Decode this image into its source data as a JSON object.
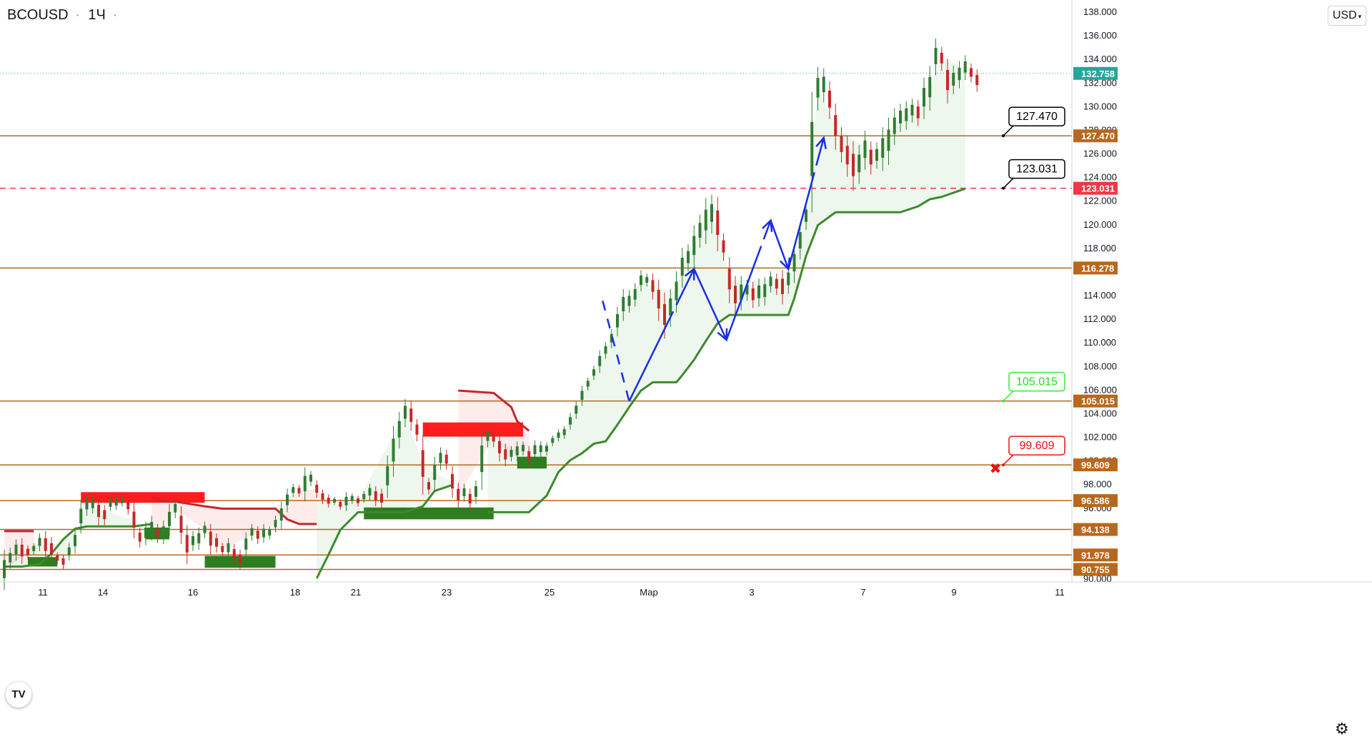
{
  "header": {
    "symbol": "BCOUSD",
    "timeframe": "1Ч",
    "menu_dot": "·"
  },
  "currency_button": "USD",
  "logo_text": "TV",
  "settings_icon": "gear-icon",
  "colors": {
    "level_line": "#b8681e",
    "level_label_bg": "#b8681e",
    "price_line": "#26a69a",
    "resistance_dashed": "#f23645",
    "stop_green": "#3c8a2e",
    "stop_red": "#c62828",
    "arrow": "#1a2ee0",
    "up_candle": "#2f7d32",
    "down_candle": "#c62828"
  },
  "chart_data": {
    "type": "candlestick",
    "price_axis": {
      "ylim": [
        90.0,
        138.0
      ],
      "ticks": [
        "136.000",
        "134.000",
        "132.000",
        "130.000",
        "126.000",
        "124.000",
        "122.000",
        "120.000",
        "118.000",
        "114.000",
        "112.000",
        "110.000",
        "108.000",
        "106.000",
        "104.000",
        "102.000",
        "98.000"
      ],
      "partial_ticks": [
        "138.000",
        "128.000",
        "100.000",
        "96.000",
        "90.000"
      ]
    },
    "time_axis": {
      "labels": [
        "11",
        "14",
        "16",
        "18",
        "21",
        "23",
        "25",
        "Мар",
        "3",
        "7",
        "9",
        "11"
      ]
    },
    "current_price": {
      "value": 132.758,
      "label": "132.758"
    },
    "levels": [
      {
        "value": 127.47,
        "label": "127.470",
        "style": "solid"
      },
      {
        "value": 123.031,
        "label": "123.031",
        "style": "dashed"
      },
      {
        "value": 116.278,
        "label": "116.278",
        "style": "solid"
      },
      {
        "value": 105.015,
        "label": "105.015",
        "style": "solid"
      },
      {
        "value": 99.609,
        "label": "99.609",
        "style": "solid"
      },
      {
        "value": 96.586,
        "label": "96.586",
        "style": "solid"
      },
      {
        "value": 94.138,
        "label": "94.138",
        "style": "solid"
      },
      {
        "value": 91.978,
        "label": "91.978",
        "style": "solid"
      },
      {
        "value": 90.755,
        "label": "90.755",
        "style": "solid"
      }
    ],
    "callouts": [
      {
        "value": 127.47,
        "label": "127.470",
        "type": "target"
      },
      {
        "value": 123.031,
        "label": "123.031",
        "type": "target"
      },
      {
        "value": 105.015,
        "label": "105.015",
        "type": "buy"
      },
      {
        "value": 99.609,
        "label": "99.609",
        "type": "stop"
      }
    ],
    "candles": [
      [
        89,
        92.4
      ],
      [
        90.8,
        92.6
      ],
      [
        91.5,
        93.3
      ],
      [
        91.2,
        93.4
      ],
      [
        91.6,
        92.8
      ],
      [
        92,
        93.0
      ],
      [
        92.3,
        93.8
      ],
      [
        91.6,
        94.0
      ],
      [
        91.4,
        93.5
      ],
      [
        91.2,
        92.2
      ],
      [
        90.8,
        92.0
      ],
      [
        91.5,
        93.0
      ],
      [
        92.1,
        94.2
      ],
      [
        93.8,
        96.6
      ],
      [
        95.3,
        97.1
      ],
      [
        95.5,
        97.0
      ],
      [
        94.5,
        96.8
      ],
      [
        94.5,
        96.2
      ],
      [
        95.7,
        96.9
      ],
      [
        95.8,
        97.0
      ],
      [
        96.1,
        97.0
      ],
      [
        95.4,
        96.9
      ],
      [
        93.4,
        96.4
      ],
      [
        92.6,
        94.3
      ],
      [
        92.8,
        94.8
      ],
      [
        93.2,
        95.3
      ],
      [
        93.0,
        94.6
      ],
      [
        92.9,
        94.9
      ],
      [
        93.6,
        96.3
      ],
      [
        95.1,
        96.7
      ],
      [
        92.9,
        96.1
      ],
      [
        91.2,
        94.5
      ],
      [
        92.3,
        94.0
      ],
      [
        92.4,
        94.3
      ],
      [
        93.4,
        94.8
      ],
      [
        92.0,
        94.6
      ],
      [
        92.2,
        93.8
      ],
      [
        91.9,
        93.0
      ],
      [
        91.7,
        93.4
      ],
      [
        91.2,
        92.9
      ],
      [
        90.8,
        92.4
      ],
      [
        91.8,
        93.9
      ],
      [
        93.2,
        94.6
      ],
      [
        92.9,
        94.4
      ],
      [
        93.0,
        94.6
      ],
      [
        93.3,
        94.4
      ],
      [
        93.9,
        95.3
      ],
      [
        94.2,
        96.5
      ],
      [
        95.6,
        97.6
      ],
      [
        96.9,
        98.0
      ],
      [
        96.9,
        97.9
      ],
      [
        96.5,
        99.4
      ],
      [
        97.8,
        99.1
      ],
      [
        96.8,
        98.3
      ],
      [
        96.3,
        97.5
      ],
      [
        96.0,
        97.1
      ],
      [
        96.2,
        96.9
      ],
      [
        95.8,
        96.7
      ],
      [
        95.7,
        97.3
      ],
      [
        96.3,
        97.2
      ],
      [
        96.1,
        97.0
      ],
      [
        96.4,
        97.4
      ],
      [
        96.6,
        98.0
      ],
      [
        96.1,
        97.8
      ],
      [
        95.9,
        97.6
      ],
      [
        96.8,
        100.4
      ],
      [
        98.6,
        102.9
      ],
      [
        101.0,
        104.1
      ],
      [
        102.8,
        105.2
      ],
      [
        102.5,
        105.0
      ],
      [
        101.6,
        103.5
      ],
      [
        97.1,
        102.1
      ],
      [
        97.1,
        98.5
      ],
      [
        97.5,
        100.3
      ],
      [
        99.2,
        101.1
      ],
      [
        99.2,
        100.9
      ],
      [
        96.8,
        99.5
      ],
      [
        96.0,
        98.1
      ],
      [
        96.5,
        98.0
      ],
      [
        95.8,
        97.6
      ],
      [
        96.3,
        98.3
      ],
      [
        97.5,
        102.5
      ],
      [
        101.1,
        102.9
      ],
      [
        101.1,
        102.7
      ],
      [
        99.9,
        102.2
      ],
      [
        99.5,
        101.4
      ],
      [
        99.9,
        101.2
      ],
      [
        99.9,
        101.6
      ],
      [
        100.4,
        101.6
      ],
      [
        99.5,
        101.2
      ],
      [
        100.0,
        101.7
      ],
      [
        100.3,
        101.6
      ],
      [
        100.4,
        101.5
      ],
      [
        101.2,
        102.1
      ],
      [
        101.6,
        102.6
      ],
      [
        101.8,
        102.9
      ],
      [
        102.6,
        104.0
      ],
      [
        103.5,
        105.0
      ],
      [
        104.6,
        106.3
      ],
      [
        105.9,
        107.0
      ],
      [
        106.8,
        108.0
      ],
      [
        107.4,
        109.3
      ],
      [
        108.6,
        110.0
      ],
      [
        109.5,
        111.1
      ],
      [
        110.5,
        113.0
      ],
      [
        111.8,
        114.5
      ],
      [
        112.5,
        114.4
      ],
      [
        113.0,
        115.0
      ],
      [
        114.3,
        116.1
      ],
      [
        114.7,
        115.8
      ],
      [
        113.6,
        115.8
      ],
      [
        111.8,
        115.3
      ],
      [
        110.3,
        114.2
      ],
      [
        111.3,
        114.5
      ],
      [
        112.5,
        116.0
      ],
      [
        114.6,
        118.0
      ],
      [
        116.0,
        118.3
      ],
      [
        116.3,
        119.9
      ],
      [
        118.0,
        120.8
      ],
      [
        118.3,
        122.2
      ],
      [
        119.2,
        122.5
      ],
      [
        117.7,
        122.3
      ],
      [
        116.9,
        119.2
      ],
      [
        113.3,
        117.2
      ],
      [
        112.3,
        115.6
      ],
      [
        112.7,
        115.6
      ],
      [
        113.5,
        115.3
      ],
      [
        112.9,
        115.1
      ],
      [
        113.0,
        115.4
      ],
      [
        113.1,
        115.5
      ],
      [
        114.2,
        116.0
      ],
      [
        114.0,
        115.8
      ],
      [
        113.2,
        116.1
      ],
      [
        114.1,
        116.5
      ],
      [
        115.0,
        118.3
      ],
      [
        117.0,
        120.1
      ],
      [
        119.5,
        121.8
      ],
      [
        121.0,
        131.2
      ],
      [
        129.6,
        133.3
      ],
      [
        130.3,
        133.2
      ],
      [
        128.9,
        132.1
      ],
      [
        126.3,
        130.2
      ],
      [
        125.2,
        128.2
      ],
      [
        124.0,
        127.5
      ],
      [
        122.8,
        127.0
      ],
      [
        123.4,
        126.7
      ],
      [
        124.6,
        127.9
      ],
      [
        124.2,
        127.0
      ],
      [
        124.7,
        126.9
      ],
      [
        124.5,
        128.2
      ],
      [
        125.0,
        129.0
      ],
      [
        126.7,
        129.8
      ],
      [
        127.8,
        130.2
      ],
      [
        128.0,
        130.4
      ],
      [
        128.6,
        130.6
      ],
      [
        128.3,
        130.5
      ],
      [
        128.9,
        132.4
      ],
      [
        129.6,
        133.4
      ],
      [
        132.6,
        135.7
      ],
      [
        133.0,
        135.0
      ],
      [
        130.2,
        134.0
      ],
      [
        131.0,
        133.4
      ],
      [
        131.5,
        133.8
      ],
      [
        132.2,
        134.3
      ],
      [
        132.0,
        133.6
      ],
      [
        131.2,
        133.1
      ]
    ],
    "stop_trail": {
      "green_segments": [
        [
          [
            0,
            91.0
          ],
          [
            3,
            91.0
          ],
          [
            6,
            91.2
          ],
          [
            8,
            92.1
          ],
          [
            10,
            93.3
          ],
          [
            12,
            94.2
          ],
          [
            14,
            94.4
          ],
          [
            22,
            94.4
          ],
          [
            25,
            94.6
          ]
        ],
        [
          [
            53,
            90.0
          ],
          [
            55,
            92.0
          ],
          [
            57,
            94.1
          ],
          [
            60,
            95.6
          ],
          [
            68,
            95.6
          ],
          [
            71,
            96.1
          ],
          [
            73,
            97.4
          ],
          [
            76,
            97.9
          ]
        ],
        [
          [
            82,
            95.6
          ],
          [
            89,
            95.6
          ],
          [
            92,
            97.0
          ],
          [
            94,
            99.0
          ],
          [
            96,
            100.0
          ],
          [
            98,
            100.6
          ],
          [
            100,
            101.4
          ],
          [
            102,
            101.6
          ],
          [
            104,
            103.0
          ],
          [
            106,
            104.5
          ],
          [
            108,
            105.9
          ],
          [
            110,
            106.6
          ],
          [
            114,
            106.6
          ],
          [
            115,
            107.2
          ],
          [
            117,
            108.5
          ],
          [
            119,
            110.1
          ],
          [
            121,
            111.6
          ],
          [
            123,
            112.3
          ],
          [
            133,
            112.3
          ],
          [
            134,
            113.7
          ],
          [
            136,
            117.3
          ],
          [
            138,
            119.9
          ],
          [
            141,
            121.0
          ],
          [
            148,
            121.0
          ],
          [
            152,
            121.0
          ],
          [
            155,
            121.5
          ],
          [
            157,
            122.1
          ],
          [
            159,
            122.3
          ],
          [
            163,
            123.0
          ]
        ]
      ],
      "red_segments": [
        [
          [
            0,
            94.0
          ],
          [
            5,
            94.0
          ]
        ],
        [
          [
            25,
            96.9
          ],
          [
            27,
            96.5
          ],
          [
            29,
            96.5
          ],
          [
            34,
            96.1
          ],
          [
            37,
            95.9
          ],
          [
            46,
            95.9
          ],
          [
            48,
            95.0
          ],
          [
            50,
            94.6
          ],
          [
            53,
            94.6
          ]
        ],
        [
          [
            77,
            105.9
          ],
          [
            83,
            105.7
          ],
          [
            86,
            104.5
          ],
          [
            87,
            103.3
          ],
          [
            89,
            102.5
          ]
        ]
      ]
    },
    "zones": [
      {
        "type": "resistance",
        "x0": 13,
        "x1": 34,
        "top": 97.3,
        "bottom": 96.4
      },
      {
        "type": "support",
        "x0": 4,
        "x1": 9,
        "top": 91.8,
        "bottom": 91.0
      },
      {
        "type": "support",
        "x0": 24,
        "x1": 28,
        "top": 94.3,
        "bottom": 93.3
      },
      {
        "type": "support",
        "x0": 34,
        "x1": 46,
        "top": 91.9,
        "bottom": 90.9
      },
      {
        "type": "support",
        "x0": 61,
        "x1": 83,
        "top": 96.0,
        "bottom": 95.0
      },
      {
        "type": "resistance",
        "x0": 71,
        "x1": 88,
        "top": 103.2,
        "bottom": 102.0
      },
      {
        "type": "support",
        "x0": 87,
        "x1": 92,
        "top": 100.3,
        "bottom": 99.3
      }
    ],
    "projection": {
      "past_dashed": [
        [
          101.5,
          113.5
        ],
        [
          106,
          105.0
        ]
      ],
      "solid_segments": [
        [
          [
            106,
            105.0
          ],
          [
            117,
            116.2
          ]
        ],
        [
          [
            117,
            116.2
          ],
          [
            122.5,
            110.2
          ]
        ],
        [
          [
            122.5,
            110.2
          ],
          [
            130,
            120.3
          ]
        ],
        [
          [
            130,
            120.3
          ],
          [
            133,
            116.2
          ]
        ],
        [
          [
            133,
            116.2
          ],
          [
            139,
            127.3
          ]
        ]
      ]
    }
  }
}
